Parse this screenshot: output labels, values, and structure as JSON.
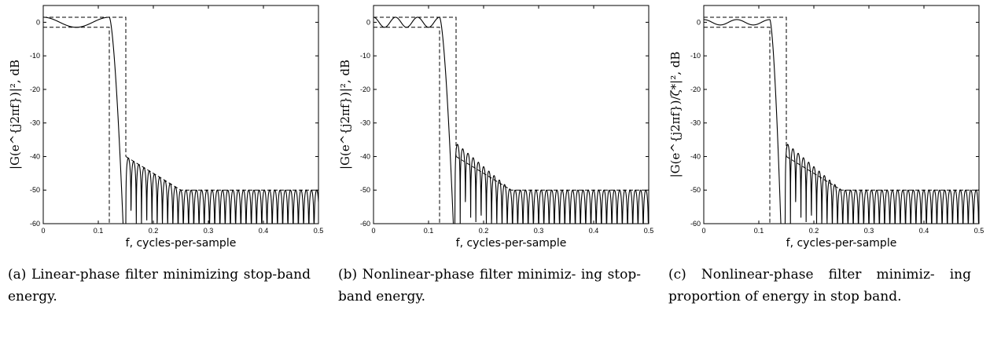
{
  "figure": {
    "captions": [
      "(a) Linear-phase filter minimizing stop-band energy.",
      "(b) Nonlinear-phase filter minimiz- ing stop-band energy.",
      "(c) Nonlinear-phase filter minimiz- ing proportion of energy in stop band."
    ]
  },
  "chart_data": [
    {
      "type": "line",
      "xlabel": "f, cycles-per-sample",
      "ylabel": "|G(e^{j2πf})|², dB",
      "xlim": [
        0,
        0.5
      ],
      "ylim": [
        -60,
        5
      ],
      "x_ticks": [
        "0",
        "0.1",
        "0.2",
        "0.3",
        "0.4",
        "0.5"
      ],
      "y_ticks": [
        "0",
        "-10",
        "-20",
        "-30",
        "-40",
        "-50",
        "-60"
      ],
      "grid": false,
      "mask": {
        "passband_edge": 0.12,
        "stopband_edge": 0.15,
        "passband_upper_db": 1.5,
        "passband_lower_db": -1.5,
        "stopband_bound": [
          [
            0.15,
            -40
          ],
          [
            0.25,
            -50
          ],
          [
            0.5,
            -50
          ]
        ]
      },
      "response": {
        "passband_ripple_db": 1.5,
        "passband_ripples": 2,
        "transition_end": 0.145,
        "stopband_first_lobe": 0.15,
        "stopband_first_peak_db": -40,
        "stopband_lobe_spacing": 0.0095
      }
    },
    {
      "type": "line",
      "xlabel": "f, cycles-per-sample",
      "ylabel": "|G(e^{j2πf})|², dB",
      "xlim": [
        0,
        0.5
      ],
      "ylim": [
        -60,
        5
      ],
      "x_ticks": [
        "0",
        "0.1",
        "0.2",
        "0.3",
        "0.4",
        "0.5"
      ],
      "y_ticks": [
        "0",
        "-10",
        "-20",
        "-30",
        "-40",
        "-50",
        "-60"
      ],
      "grid": false,
      "mask": {
        "passband_edge": 0.12,
        "stopband_edge": 0.15,
        "passband_upper_db": 1.5,
        "passband_lower_db": -1.5,
        "stopband_bound": [
          [
            0.15,
            -40
          ],
          [
            0.25,
            -50
          ],
          [
            0.5,
            -50
          ]
        ]
      },
      "response": {
        "passband_ripple_db": 1.5,
        "passband_ripples": 6,
        "transition_end": 0.145,
        "stopband_first_lobe": 0.148,
        "stopband_first_peak_db": -36,
        "stopband_lobe_spacing": 0.0095
      }
    },
    {
      "type": "line",
      "xlabel": "f, cycles-per-sample",
      "ylabel": "|G(e^{j2πf})/ζ*|², dB",
      "xlim": [
        0,
        0.5
      ],
      "ylim": [
        -60,
        5
      ],
      "x_ticks": [
        "0",
        "0.1",
        "0.2",
        "0.3",
        "0.4",
        "0.5"
      ],
      "y_ticks": [
        "0",
        "-10",
        "-20",
        "-30",
        "-40",
        "-50",
        "-60"
      ],
      "grid": false,
      "mask": {
        "passband_edge": 0.12,
        "stopband_edge": 0.15,
        "passband_upper_db": 1.5,
        "passband_lower_db": -1.5,
        "stopband_bound": [
          [
            0.15,
            -40
          ],
          [
            0.25,
            -50
          ],
          [
            0.5,
            -50
          ]
        ]
      },
      "response": {
        "passband_ripple_db": 0.8,
        "passband_ripples": 4,
        "transition_end": 0.14,
        "stopband_first_lobe": 0.148,
        "stopband_first_peak_db": -36,
        "stopband_lobe_spacing": 0.0095
      }
    }
  ]
}
